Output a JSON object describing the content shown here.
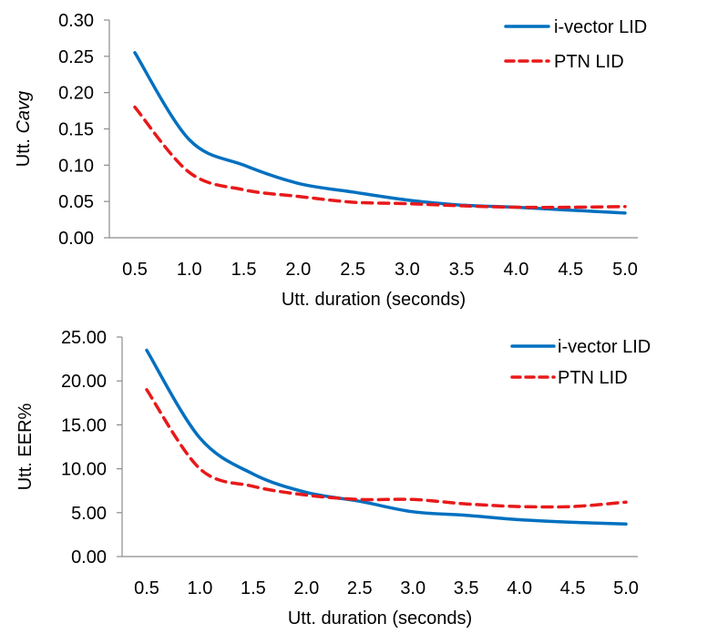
{
  "chart_data": [
    {
      "type": "line",
      "title": "",
      "xlabel": "Utt. duration (seconds)",
      "ylabel_prefix": "Utt. ",
      "ylabel_italic": "Cavg",
      "ylim": [
        0,
        0.3
      ],
      "yticks": [
        "0.00",
        "0.05",
        "0.10",
        "0.15",
        "0.20",
        "0.25",
        "0.30"
      ],
      "ytick_values": [
        0,
        0.05,
        0.1,
        0.15,
        0.2,
        0.25,
        0.3
      ],
      "x": [
        "0.5",
        "1.0",
        "1.5",
        "2.0",
        "2.5",
        "3.0",
        "3.5",
        "4.0",
        "4.5",
        "5.0"
      ],
      "legend": "top-right",
      "series": [
        {
          "name": "i-vector LID",
          "color": "#0070C0",
          "style": "solid",
          "values": [
            0.255,
            0.135,
            0.1,
            0.075,
            0.063,
            0.052,
            0.045,
            0.042,
            0.038,
            0.034
          ]
        },
        {
          "name": "PTN LID",
          "color": "#E8191A",
          "style": "dashed",
          "values": [
            0.18,
            0.09,
            0.066,
            0.057,
            0.049,
            0.047,
            0.044,
            0.042,
            0.042,
            0.043
          ]
        }
      ]
    },
    {
      "type": "line",
      "title": "",
      "xlabel": "Utt. duration (seconds)",
      "ylabel_prefix": "Utt. EER%",
      "ylabel_italic": "",
      "ylim": [
        0,
        25
      ],
      "yticks": [
        "0.00",
        "5.00",
        "10.00",
        "15.00",
        "20.00",
        "25.00"
      ],
      "ytick_values": [
        0,
        5,
        10,
        15,
        20,
        25
      ],
      "x": [
        "0.5",
        "1.0",
        "1.5",
        "2.0",
        "2.5",
        "3.0",
        "3.5",
        "4.0",
        "4.5",
        "5.0"
      ],
      "legend": "top-right",
      "series": [
        {
          "name": "i-vector LID",
          "color": "#0070C0",
          "style": "solid",
          "values": [
            23.5,
            13.5,
            9.4,
            7.3,
            6.3,
            5.1,
            4.7,
            4.2,
            3.9,
            3.7
          ]
        },
        {
          "name": "PTN LID",
          "color": "#E8191A",
          "style": "dashed",
          "values": [
            19.0,
            10.0,
            8.0,
            7.0,
            6.5,
            6.5,
            6.0,
            5.7,
            5.7,
            6.2
          ]
        }
      ]
    }
  ]
}
